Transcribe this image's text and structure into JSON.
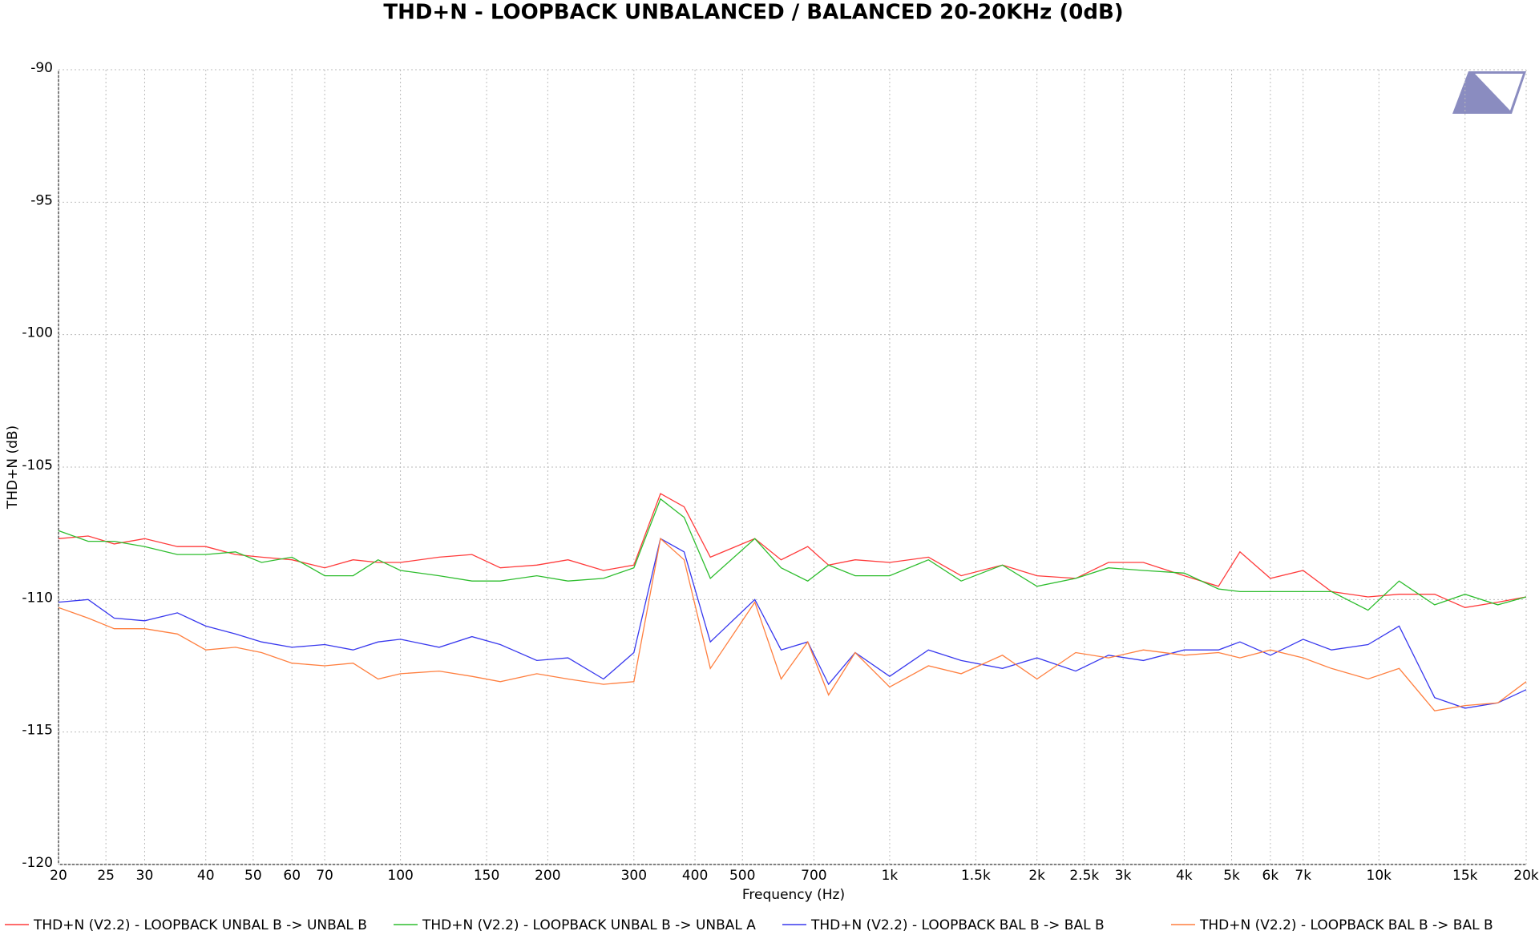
{
  "chart_data": {
    "type": "line",
    "title": "THD+N - LOOPBACK UNBALANCED / BALANCED 20-20KHz (0dB)",
    "x_label": "Frequency (Hz)",
    "y_label": "THD+N (dB)",
    "x_scale": "log",
    "grid": true,
    "xlim": [
      20,
      20000
    ],
    "ylim": [
      -120,
      -90
    ],
    "yticks": [
      -120,
      -115,
      -110,
      -105,
      -100,
      -95,
      -90
    ],
    "xticks": [
      20,
      25,
      30,
      40,
      50,
      60,
      70,
      100,
      150,
      200,
      300,
      400,
      500,
      700,
      {
        "value": 1000,
        "label": "1k"
      },
      {
        "value": 1500,
        "label": "1.5k"
      },
      {
        "value": 2000,
        "label": "2k"
      },
      {
        "value": 2500,
        "label": "2.5k"
      },
      {
        "value": 3000,
        "label": "3k"
      },
      {
        "value": 4000,
        "label": "4k"
      },
      {
        "value": 5000,
        "label": "5k"
      },
      {
        "value": 6000,
        "label": "6k"
      },
      {
        "value": 7000,
        "label": "7k"
      },
      {
        "value": 10000,
        "label": "10k"
      },
      {
        "value": 15000,
        "label": "15k"
      },
      {
        "value": 20000,
        "label": "20k"
      }
    ],
    "x": [
      20,
      23,
      26,
      30,
      35,
      40,
      46,
      52,
      60,
      70,
      80,
      90,
      100,
      120,
      140,
      160,
      190,
      220,
      260,
      300,
      340,
      380,
      430,
      530,
      600,
      680,
      750,
      850,
      1000,
      1200,
      1400,
      1700,
      2000,
      2400,
      2800,
      3300,
      4000,
      4700,
      5200,
      6000,
      7000,
      8000,
      9500,
      11000,
      13000,
      15000,
      17500,
      20000
    ],
    "series": [
      {
        "name": "THD+N (V2.2) - LOOPBACK UNBAL B -> UNBAL B",
        "color": "#ff3b3b",
        "values": [
          -107.7,
          -107.6,
          -107.9,
          -107.7,
          -108.0,
          -108.0,
          -108.3,
          -108.4,
          -108.5,
          -108.8,
          -108.5,
          -108.6,
          -108.6,
          -108.4,
          -108.3,
          -108.8,
          -108.7,
          -108.5,
          -108.9,
          -108.7,
          -106.0,
          -106.5,
          -108.4,
          -107.7,
          -108.5,
          -108.0,
          -108.7,
          -108.5,
          -108.6,
          -108.4,
          -109.1,
          -108.7,
          -109.1,
          -109.2,
          -108.6,
          -108.6,
          -109.1,
          -109.5,
          -108.2,
          -109.2,
          -108.9,
          -109.7,
          -109.9,
          -109.8,
          -109.8,
          -110.3,
          -110.1,
          -109.9
        ]
      },
      {
        "name": "THD+N (V2.2) - LOOPBACK UNBAL B -> UNBAL A",
        "color": "#2ebd2e",
        "values": [
          -107.4,
          -107.8,
          -107.8,
          -108.0,
          -108.3,
          -108.3,
          -108.2,
          -108.6,
          -108.4,
          -109.1,
          -109.1,
          -108.5,
          -108.9,
          -109.1,
          -109.3,
          -109.3,
          -109.1,
          -109.3,
          -109.2,
          -108.8,
          -106.2,
          -106.9,
          -109.2,
          -107.7,
          -108.8,
          -109.3,
          -108.7,
          -109.1,
          -109.1,
          -108.5,
          -109.3,
          -108.7,
          -109.5,
          -109.2,
          -108.8,
          -108.9,
          -109.0,
          -109.6,
          -109.7,
          -109.7,
          -109.7,
          -109.7,
          -110.4,
          -109.3,
          -110.2,
          -109.8,
          -110.2,
          -109.9
        ]
      },
      {
        "name": "THD+N (V2.2) - LOOPBACK BAL B -> BAL B",
        "color": "#3838ee",
        "values": [
          -110.1,
          -110.0,
          -110.7,
          -110.8,
          -110.5,
          -111.0,
          -111.3,
          -111.6,
          -111.8,
          -111.7,
          -111.9,
          -111.6,
          -111.5,
          -111.8,
          -111.4,
          -111.7,
          -112.3,
          -112.2,
          -113.0,
          -112.0,
          -107.7,
          -108.2,
          -111.6,
          -110.0,
          -111.9,
          -111.6,
          -113.2,
          -112.0,
          -112.9,
          -111.9,
          -112.3,
          -112.6,
          -112.2,
          -112.7,
          -112.1,
          -112.3,
          -111.9,
          -111.9,
          -111.6,
          -112.1,
          -111.5,
          -111.9,
          -111.7,
          -111.0,
          -113.7,
          -114.1,
          -113.9,
          -113.4
        ]
      },
      {
        "name": "THD+N (V2.2) - LOOPBACK BAL B -> BAL B",
        "color": "#ff7f3f",
        "values": [
          -110.3,
          -110.7,
          -111.1,
          -111.1,
          -111.3,
          -111.9,
          -111.8,
          -112.0,
          -112.4,
          -112.5,
          -112.4,
          -113.0,
          -112.8,
          -112.7,
          -112.9,
          -113.1,
          -112.8,
          -113.0,
          -113.2,
          -113.1,
          -107.7,
          -108.5,
          -112.6,
          -110.1,
          -113.0,
          -111.6,
          -113.6,
          -112.0,
          -113.3,
          -112.5,
          -112.8,
          -112.1,
          -113.0,
          -112.0,
          -112.2,
          -111.9,
          -112.1,
          -112.0,
          -112.2,
          -111.9,
          -112.2,
          -112.6,
          -113.0,
          -112.6,
          -114.2,
          -114.0,
          -113.9,
          -113.1
        ]
      }
    ]
  }
}
